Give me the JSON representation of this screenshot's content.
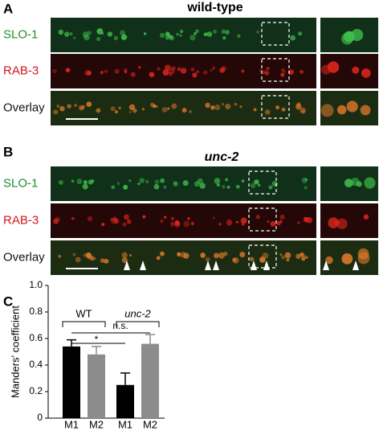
{
  "panels": [
    {
      "label": "A",
      "title": "wild-type",
      "rows": [
        "SLO-1",
        "RAB-3",
        "Overlay"
      ]
    },
    {
      "label": "B",
      "title": "unc-2",
      "rows": [
        "SLO-1",
        "RAB-3",
        "Overlay"
      ]
    }
  ],
  "chart_data": {
    "type": "bar",
    "panel_label": "C",
    "y_label": "Manders' coefficient",
    "categories": [
      "M1",
      "M2",
      "M1",
      "M2"
    ],
    "values": [
      0.54,
      0.48,
      0.25,
      0.56
    ],
    "errors": [
      0.05,
      0.06,
      0.09,
      0.07
    ],
    "colors": [
      "#000000",
      "#8c8c8c",
      "#000000",
      "#8c8c8c"
    ],
    "ylim": [
      0,
      1
    ],
    "yticks": [
      0,
      0.2,
      0.4,
      0.6,
      0.8,
      {
        "value": 1,
        "label": "1.0"
      }
    ],
    "groups": [
      "WT",
      "unc-2"
    ],
    "annotations": [
      "n.s.",
      "*"
    ]
  }
}
